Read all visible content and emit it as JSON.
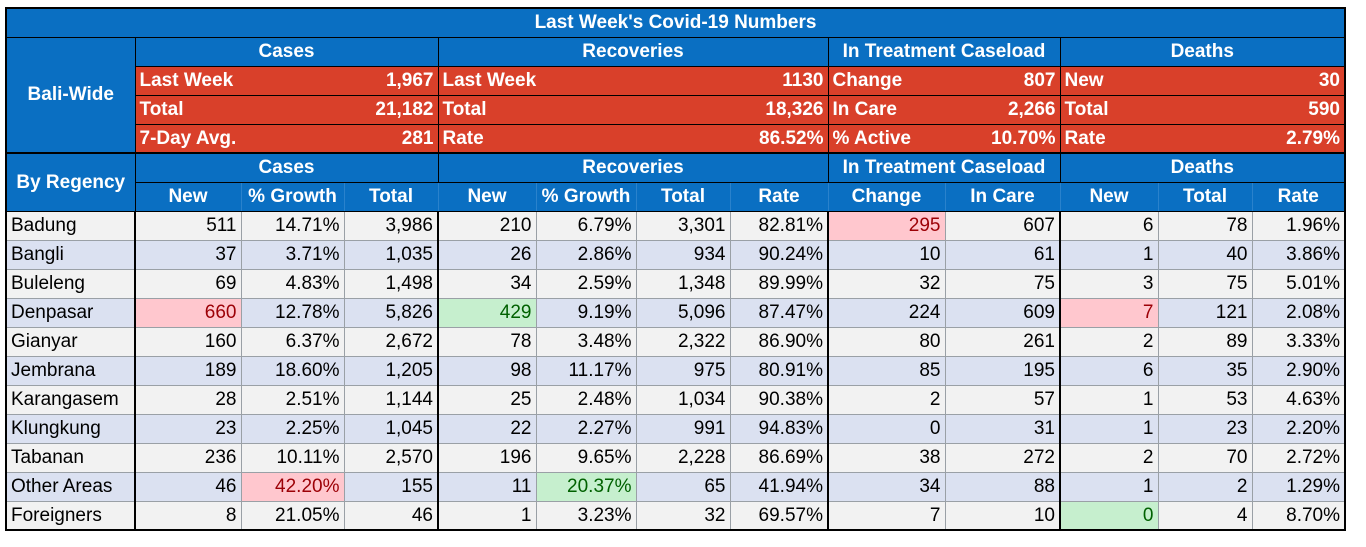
{
  "title": "Last Week's Covid-19 Numbers",
  "groups": [
    "Cases",
    "Recoveries",
    "In Treatment Caseload",
    "Deaths"
  ],
  "bali_label": "Bali-Wide",
  "bali": [
    [
      "Last Week",
      "1,967",
      "Last Week",
      "1130",
      "Change",
      "807",
      "New",
      "30"
    ],
    [
      "Total",
      "21,182",
      "Total",
      "18,326",
      "In Care",
      "2,266",
      "Total",
      "590"
    ],
    [
      "7-Day Avg.",
      "281",
      "Rate",
      "86.52%",
      "% Active",
      "10.70%",
      "Rate",
      "2.79%"
    ]
  ],
  "regency_label": "By Regency",
  "subheaders": [
    "New",
    "% Growth",
    "Total",
    "New",
    "% Growth",
    "Total",
    "Rate",
    "Change",
    "In Care",
    "New",
    "Total",
    "Rate"
  ],
  "rows": [
    [
      "Badung",
      "511",
      "14.71%",
      "3,986",
      "210",
      "6.79%",
      "3,301",
      "82.81%",
      "295",
      "607",
      "6",
      "78",
      "1.96%"
    ],
    [
      "Bangli",
      "37",
      "3.71%",
      "1,035",
      "26",
      "2.86%",
      "934",
      "90.24%",
      "10",
      "61",
      "1",
      "40",
      "3.86%"
    ],
    [
      "Buleleng",
      "69",
      "4.83%",
      "1,498",
      "34",
      "2.59%",
      "1,348",
      "89.99%",
      "32",
      "75",
      "3",
      "75",
      "5.01%"
    ],
    [
      "Denpasar",
      "660",
      "12.78%",
      "5,826",
      "429",
      "9.19%",
      "5,096",
      "87.47%",
      "224",
      "609",
      "7",
      "121",
      "2.08%"
    ],
    [
      "Gianyar",
      "160",
      "6.37%",
      "2,672",
      "78",
      "3.48%",
      "2,322",
      "86.90%",
      "80",
      "261",
      "2",
      "89",
      "3.33%"
    ],
    [
      "Jembrana",
      "189",
      "18.60%",
      "1,205",
      "98",
      "11.17%",
      "975",
      "80.91%",
      "85",
      "195",
      "6",
      "35",
      "2.90%"
    ],
    [
      "Karangasem",
      "28",
      "2.51%",
      "1,144",
      "25",
      "2.48%",
      "1,034",
      "90.38%",
      "2",
      "57",
      "1",
      "53",
      "4.63%"
    ],
    [
      "Klungkung",
      "23",
      "2.25%",
      "1,045",
      "22",
      "2.27%",
      "991",
      "94.83%",
      "0",
      "31",
      "1",
      "23",
      "2.20%"
    ],
    [
      "Tabanan",
      "236",
      "10.11%",
      "2,570",
      "196",
      "9.65%",
      "2,228",
      "86.69%",
      "38",
      "272",
      "2",
      "70",
      "2.72%"
    ],
    [
      "Other Areas",
      "46",
      "42.20%",
      "155",
      "11",
      "20.37%",
      "65",
      "41.94%",
      "34",
      "88",
      "1",
      "2",
      "1.29%"
    ],
    [
      "Foreigners",
      "8",
      "21.05%",
      "46",
      "1",
      "3.23%",
      "32",
      "69.57%",
      "7",
      "10",
      "0",
      "4",
      "8.70%"
    ]
  ],
  "highlights": {
    "red": [
      "0-8",
      "3-1",
      "3-10",
      "9-2"
    ],
    "green": [
      "3-4",
      "9-5",
      "10-10"
    ]
  },
  "colors": {
    "header_blue": "#0a6fc2",
    "bali_red": "#d9402a",
    "row_gray": "#f2f2f2",
    "row_blue": "#dbe1f1",
    "hl_red": "#ffc7ce",
    "hl_green": "#c6efce"
  }
}
